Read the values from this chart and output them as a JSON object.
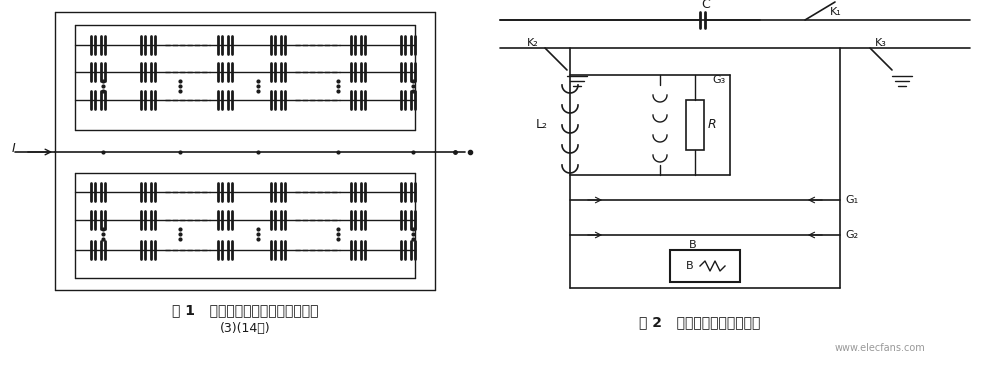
{
  "fig_width": 10.07,
  "fig_height": 3.69,
  "dpi": 100,
  "bg_color": "#ffffff",
  "caption1": "图 1   典型单元电容器组内部接线图",
  "caption2": "(3)(14节)",
  "caption3": "图 2   典型单元的保护回路图",
  "watermark": "www.elecfans.com",
  "line_color": "#1a1a1a",
  "line_width": 1.0
}
